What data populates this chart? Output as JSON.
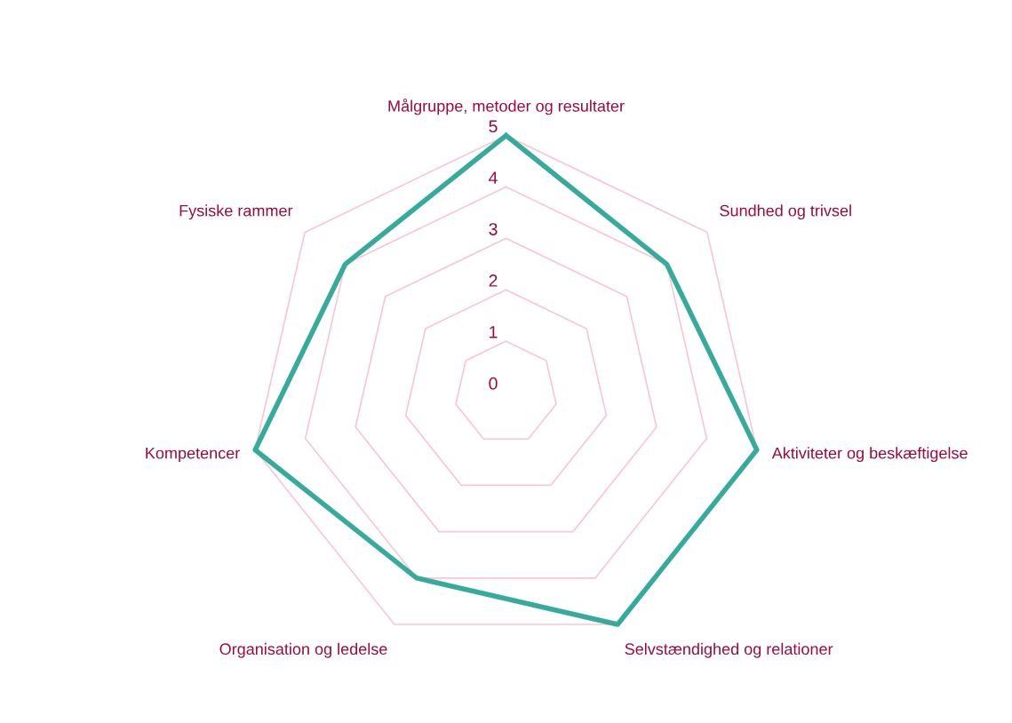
{
  "chart_data": {
    "type": "radar",
    "categories": [
      "Målgruppe, metoder og resultater",
      "Sundhed og trivsel",
      "Aktiviteter og beskæftigelse",
      "Selvstændighed og relationer",
      "Organisation og ledelse",
      "Kompetencer",
      "Fysiske rammer"
    ],
    "series": [
      {
        "color": "#35ab9c",
        "values": [
          5,
          4,
          5,
          5,
          4,
          5,
          4
        ]
      }
    ],
    "ylim": [
      0,
      5
    ],
    "yticks": [
      0,
      1,
      2,
      3,
      4,
      5
    ],
    "grid": true
  }
}
